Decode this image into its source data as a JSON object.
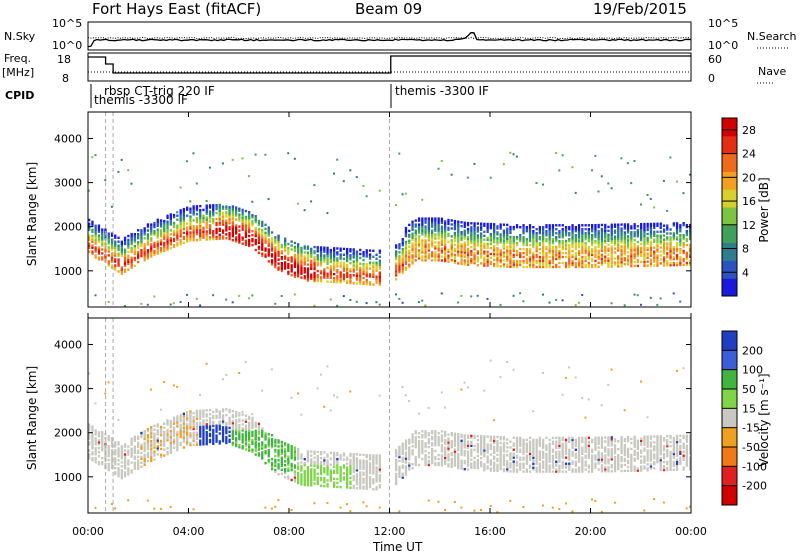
{
  "header": {
    "station": "Fort Hays East (fitACF)",
    "beam": "Beam 09",
    "date": "19/Feb/2015"
  },
  "params": {
    "nsky_label": "N.Sky",
    "nsky_ticks": [
      "10^5",
      "10^0"
    ],
    "nsearch_label": "N.Search",
    "nsearch_ticks": [
      "10^5",
      "10^0"
    ],
    "freq_label": "Freq.",
    "freq_unit": "[MHz]",
    "freq_ticks": [
      "18",
      "8"
    ],
    "nave_label": "Nave",
    "nave_ticks": [
      "60",
      "0"
    ],
    "cpid_label": "CPID",
    "cpid_entries": [
      {
        "hour": 0.7,
        "text": "themis -3300 IF"
      },
      {
        "hour": 1.0,
        "text": "rbsp CT-trig 220 IF"
      },
      {
        "hour": 12.0,
        "text": "themis -3300 IF"
      }
    ]
  },
  "chart_data": [
    {
      "type": "heatmap",
      "name": "power",
      "ylabel": "Slant Range [km]",
      "ylim": [
        180,
        4600
      ],
      "yticks": [
        1000,
        2000,
        3000,
        4000
      ],
      "xlim": [
        0,
        24
      ],
      "colorbar_label": "Power [dB]",
      "colorbar_ticks": [
        "4",
        "8",
        "12",
        "16",
        "20",
        "24",
        "28"
      ],
      "colorbar_range": [
        0,
        30
      ],
      "colormap": [
        "#1a1adb",
        "#2b53c0",
        "#2f7d8a",
        "#3fa05a",
        "#7cc442",
        "#d8d02c",
        "#f3a022",
        "#f06a1e",
        "#e62e12",
        "#d40000"
      ]
    },
    {
      "type": "heatmap",
      "name": "velocity",
      "ylabel": "Slant Range [km]",
      "ylim": [
        180,
        4600
      ],
      "yticks": [
        1000,
        2000,
        3000,
        4000
      ],
      "xlim": [
        0,
        24
      ],
      "xlabel": "Time UT",
      "xticks": [
        "00:00",
        "04:00",
        "08:00",
        "12:00",
        "16:00",
        "20:00",
        "00:00"
      ],
      "colorbar_label": "Velocity [m s⁻¹]",
      "colorbar_ticks": [
        "200",
        "100",
        "50",
        "15",
        "-15",
        "-50",
        "-100",
        "-200"
      ],
      "colors": {
        "gray": "#c8c8c0",
        "blue": "#1f3fc0",
        "green": "#3fb43f",
        "light_green": "#7fd44a",
        "orange": "#f0a020",
        "red": "#e02020"
      }
    }
  ]
}
